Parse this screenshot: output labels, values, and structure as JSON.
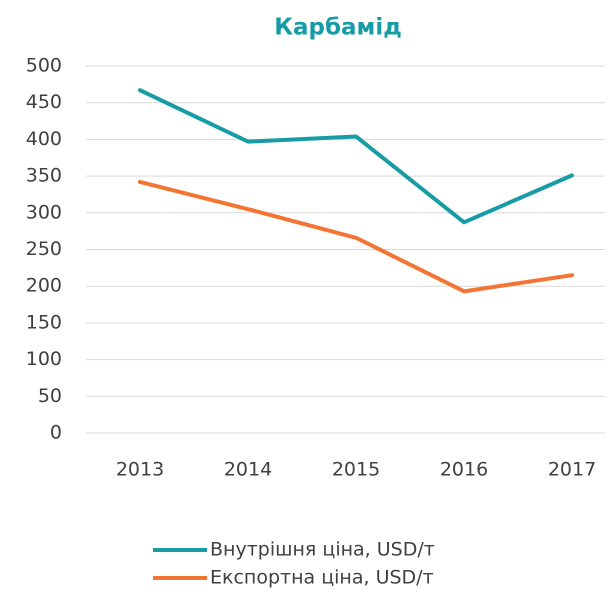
{
  "chart_data": {
    "type": "line",
    "title": "Карбамід",
    "categories": [
      "2013",
      "2014",
      "2015",
      "2016",
      "2017"
    ],
    "series": [
      {
        "name": "Внутрішня ціна, USD/т",
        "color": "#179ca6",
        "values": [
          467,
          397,
          404,
          287,
          351
        ]
      },
      {
        "name": "Експортна ціна, USD/т",
        "color": "#f47431",
        "values": [
          342,
          305,
          266,
          193,
          215
        ]
      }
    ],
    "ylim": [
      0,
      500
    ],
    "yticks": [
      0,
      50,
      100,
      150,
      200,
      250,
      300,
      350,
      400,
      450,
      500
    ],
    "grid": true,
    "legend": "bottom"
  }
}
